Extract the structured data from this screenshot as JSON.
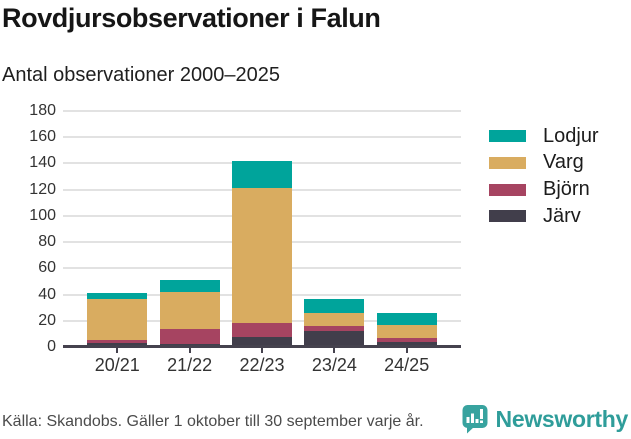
{
  "header": {
    "title": "Rovdjursobservationer i Falun",
    "subtitle": "Antal observationer 2000–2025"
  },
  "chart_data": {
    "type": "bar",
    "stacked": true,
    "title": "Rovdjursobservationer i Falun",
    "subtitle": "Antal observationer 2000–2025",
    "categories": [
      "20/21",
      "21/22",
      "22/23",
      "23/24",
      "24/25"
    ],
    "series": [
      {
        "name": "Järv",
        "color": "#413e4b",
        "values": [
          3,
          2,
          8,
          12,
          4
        ]
      },
      {
        "name": "Björn",
        "color": "#a64461",
        "values": [
          2,
          12,
          10,
          4,
          3
        ]
      },
      {
        "name": "Varg",
        "color": "#d9ac60",
        "values": [
          32,
          28,
          103,
          10,
          10
        ]
      },
      {
        "name": "Lodjur",
        "color": "#00a49b",
        "values": [
          4,
          9,
          21,
          11,
          9
        ]
      }
    ],
    "totals": [
      41,
      51,
      142,
      37,
      26
    ],
    "legend_order": [
      "Lodjur",
      "Varg",
      "Björn",
      "Järv"
    ],
    "legend_position": "right",
    "xlabel": "",
    "ylabel": "",
    "ylim": [
      0,
      180
    ],
    "y_ticks": [
      0,
      20,
      40,
      60,
      80,
      100,
      120,
      140,
      160,
      180
    ],
    "grid": true
  },
  "style_colors": {
    "grid": "#e2e2e2",
    "axis": "#45424e",
    "background": "#ffffff"
  },
  "footer": {
    "source": "Källa: Skandobs. Gäller 1 oktober till 30 september varje år.",
    "brand": "Newsworthy",
    "brand_color": "#2f9d9a",
    "brand_icon": "newsworthy-speech-bubble-chart-icon"
  }
}
